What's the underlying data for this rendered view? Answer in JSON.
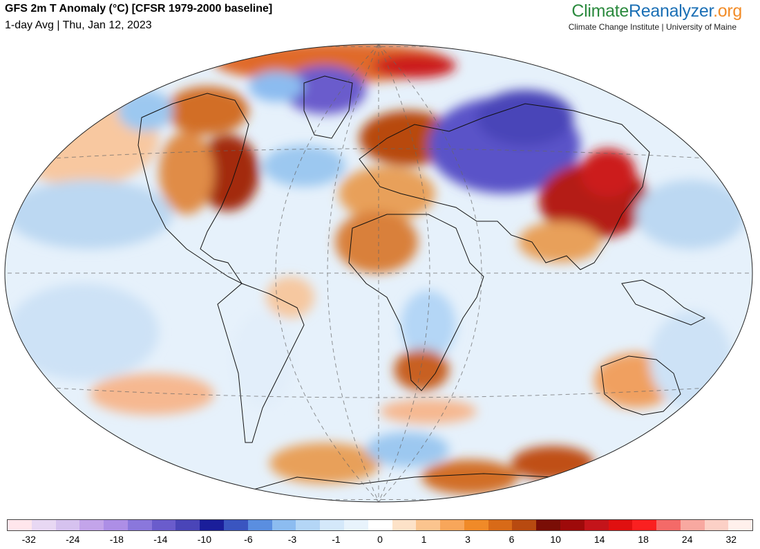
{
  "header": {
    "title": "GFS 2m T Anomaly (°C) [CFSR 1979-2000 baseline]",
    "subtitle": "1-day Avg | Thu, Jan 12, 2023"
  },
  "branding": {
    "name_part1": "Climate",
    "name_part2": "Reanalyzer",
    "name_part3": ".org",
    "affiliation": "Climate Change Institute | University of Maine",
    "color_part1": "#2b8a3e",
    "color_part2": "#1a6fb5",
    "color_part3": "#f28c28"
  },
  "map": {
    "projection": "Winkel Tripel (world)",
    "graticule": "dashed",
    "regions": [
      {
        "name": "eastern-us-warm",
        "color": "#a32a0a"
      },
      {
        "name": "greenland-cold",
        "color": "#5a52c8"
      },
      {
        "name": "arctic-warm",
        "color": "#cc1a1a"
      },
      {
        "name": "europe-warm",
        "color": "#d2641e"
      },
      {
        "name": "central-asia-cold",
        "color": "#4b3fb8"
      },
      {
        "name": "east-asia-warm",
        "color": "#b41e14"
      },
      {
        "name": "north-africa-warm",
        "color": "#e08c46"
      },
      {
        "name": "southern-africa-warm",
        "color": "#d26e28"
      },
      {
        "name": "australia-warm",
        "color": "#e8a05a"
      },
      {
        "name": "antarctica-warm",
        "color": "#d26e28"
      },
      {
        "name": "north-pacific-cool",
        "color": "#bcd8f2"
      },
      {
        "name": "south-pacific-cool",
        "color": "#bcd8f2"
      }
    ]
  },
  "colorbar": {
    "colors": [
      "#ffe6ec",
      "#e8d8f3",
      "#d6c2ef",
      "#c3a4ea",
      "#ad8ee6",
      "#8a77dc",
      "#6a5ccc",
      "#4a45b8",
      "#1a1e9a",
      "#3a55c0",
      "#5a8ee0",
      "#8cbcf0",
      "#b4d6f6",
      "#d4e8fa",
      "#e8f3fc",
      "#ffffff",
      "#fde2c8",
      "#fbc48e",
      "#f8a65a",
      "#f08a28",
      "#d86a18",
      "#b84a10",
      "#7a0e06",
      "#9e0a0a",
      "#c4141a",
      "#e01010",
      "#fa2020",
      "#f46a68",
      "#f8a8a0",
      "#fcd0c6",
      "#fff0ec"
    ],
    "tick_labels": [
      "-32",
      "-24",
      "-18",
      "-14",
      "-10",
      "-6",
      "-3",
      "-1",
      "0",
      "1",
      "3",
      "6",
      "10",
      "14",
      "18",
      "24",
      "32"
    ]
  }
}
